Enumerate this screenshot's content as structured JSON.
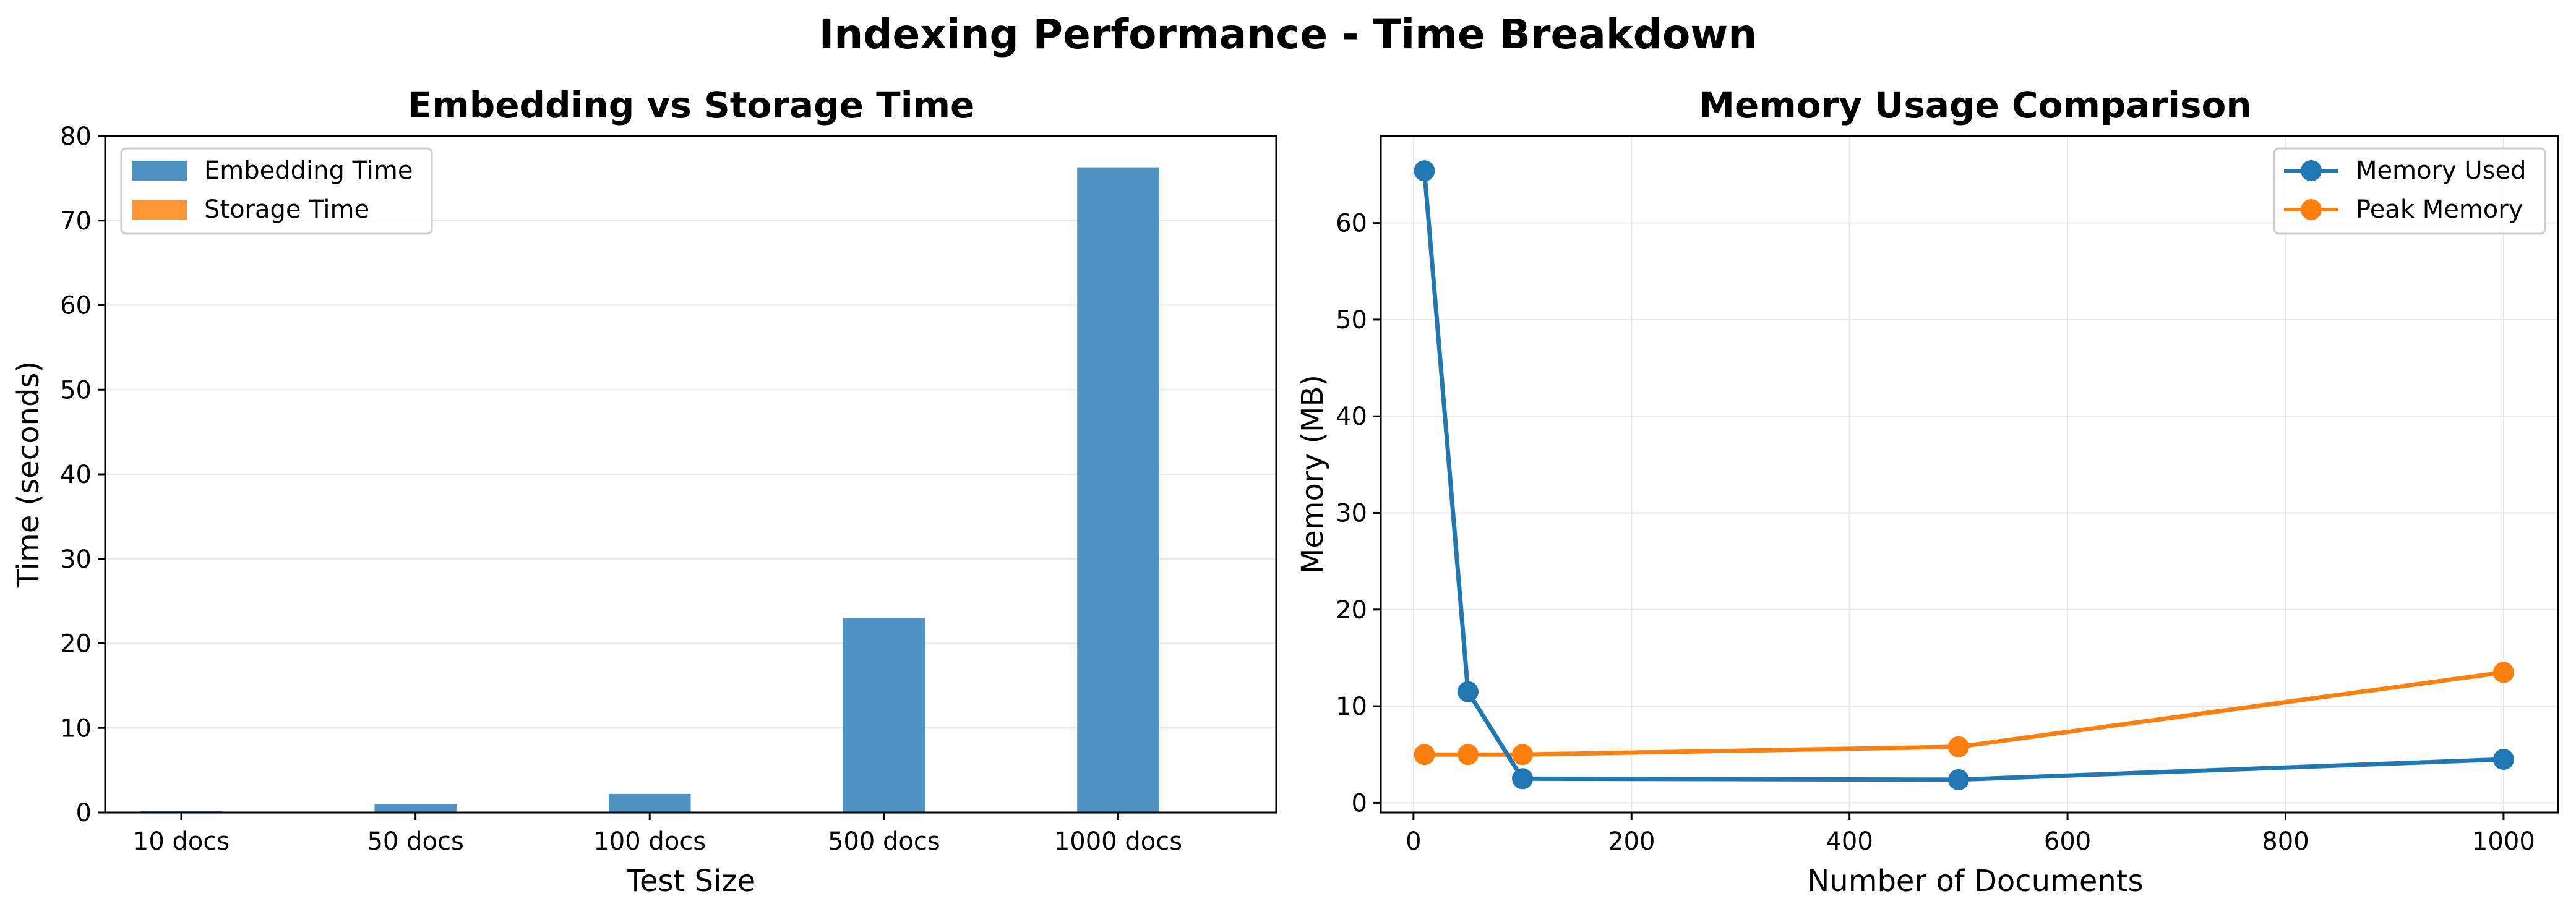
{
  "suptitle": "Indexing Performance - Time Breakdown",
  "chart_data": [
    {
      "type": "bar",
      "title": "Embedding vs Storage Time",
      "xlabel": "Test Size",
      "ylabel": "Time (seconds)",
      "categories": [
        "10 docs",
        "50 docs",
        "100 docs",
        "500 docs",
        "1000 docs"
      ],
      "ylim": [
        0,
        80
      ],
      "yticks": [
        0,
        10,
        20,
        30,
        40,
        50,
        60,
        70,
        80
      ],
      "grid": "y",
      "legend_position": "upper left",
      "series": [
        {
          "name": "Embedding Time",
          "color": "#4c92c3",
          "values": [
            0.15,
            1.0,
            2.2,
            23.0,
            76.3
          ]
        },
        {
          "name": "Storage Time",
          "color": "#ff9538",
          "values": [
            0.0,
            0.0,
            0.0,
            0.0,
            0.0
          ]
        }
      ]
    },
    {
      "type": "line",
      "title": "Memory Usage Comparison",
      "xlabel": "Number of Documents",
      "ylabel": "Memory (MB)",
      "x": [
        10,
        50,
        100,
        500,
        1000
      ],
      "xlim": [
        -30,
        1050
      ],
      "ylim": [
        -1,
        69
      ],
      "xticks": [
        0,
        200,
        400,
        600,
        800,
        1000
      ],
      "yticks": [
        0,
        10,
        20,
        30,
        40,
        50,
        60
      ],
      "grid": "both",
      "legend_position": "upper right",
      "series": [
        {
          "name": "Memory Used",
          "color": "#1f77b4",
          "values": [
            65.4,
            11.5,
            2.5,
            2.4,
            4.5
          ]
        },
        {
          "name": "Peak Memory",
          "color": "#ff7f0e",
          "values": [
            5.0,
            5.0,
            5.0,
            5.8,
            13.5
          ]
        }
      ]
    }
  ]
}
